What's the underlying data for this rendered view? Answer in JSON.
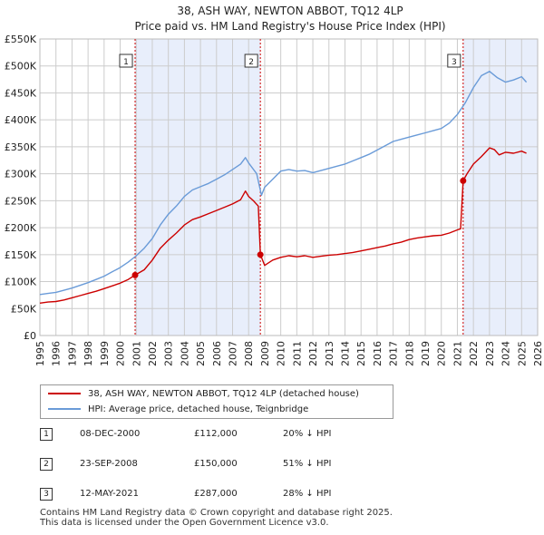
{
  "chart_data": {
    "type": "line",
    "title": "38, ASH WAY, NEWTON ABBOT, TQ12 4LP",
    "subtitle": "Price paid vs. HM Land Registry's House Price Index (HPI)",
    "xlim": [
      1995,
      2026
    ],
    "ylim": [
      0,
      550000
    ],
    "x_ticks": [
      "1995",
      "1996",
      "1997",
      "1998",
      "1999",
      "2000",
      "2001",
      "2002",
      "2003",
      "2004",
      "2005",
      "2006",
      "2007",
      "2008",
      "2009",
      "2010",
      "2011",
      "2012",
      "2013",
      "2014",
      "2015",
      "2016",
      "2017",
      "2018",
      "2019",
      "2020",
      "2021",
      "2022",
      "2023",
      "2024",
      "2025",
      "2026"
    ],
    "y_ticks": [
      {
        "value": 0,
        "label": "£0"
      },
      {
        "value": 50000,
        "label": "£50K"
      },
      {
        "value": 100000,
        "label": "£100K"
      },
      {
        "value": 150000,
        "label": "£150K"
      },
      {
        "value": 200000,
        "label": "£200K"
      },
      {
        "value": 250000,
        "label": "£250K"
      },
      {
        "value": 300000,
        "label": "£300K"
      },
      {
        "value": 350000,
        "label": "£350K"
      },
      {
        "value": 400000,
        "label": "£400K"
      },
      {
        "value": 450000,
        "label": "£450K"
      },
      {
        "value": 500000,
        "label": "£500K"
      },
      {
        "value": 550000,
        "label": "£550K"
      }
    ],
    "series": [
      {
        "name": "38, ASH WAY, NEWTON ABBOT, TQ12 4LP (detached house)",
        "color": "#cc0000",
        "x": [
          1995.0,
          1995.5,
          1996.0,
          1996.5,
          1997.0,
          1997.5,
          1998.0,
          1998.5,
          1999.0,
          1999.5,
          2000.0,
          2000.5,
          2000.93,
          2001.5,
          2002.0,
          2002.5,
          2003.0,
          2003.5,
          2004.0,
          2004.5,
          2005.0,
          2005.5,
          2006.0,
          2006.5,
          2007.0,
          2007.5,
          2007.8,
          2008.0,
          2008.3,
          2008.6,
          2008.73,
          2009.0,
          2009.5,
          2010.0,
          2010.5,
          2011.0,
          2011.5,
          2012.0,
          2012.5,
          2013.0,
          2013.5,
          2014.0,
          2014.5,
          2015.0,
          2015.5,
          2016.0,
          2016.5,
          2017.0,
          2017.5,
          2018.0,
          2018.5,
          2019.0,
          2019.5,
          2020.0,
          2020.5,
          2021.0,
          2021.2,
          2021.36,
          2021.6,
          2022.0,
          2022.5,
          2023.0,
          2023.3,
          2023.6,
          2024.0,
          2024.5,
          2025.0,
          2025.3
        ],
        "y": [
          60000,
          62000,
          63000,
          66000,
          70000,
          74000,
          78000,
          82000,
          87000,
          92000,
          97000,
          104000,
          112000,
          122000,
          140000,
          162000,
          177000,
          190000,
          205000,
          215000,
          220000,
          226000,
          232000,
          238000,
          244000,
          252000,
          268000,
          258000,
          250000,
          240000,
          150000,
          130000,
          140000,
          145000,
          148000,
          146000,
          148000,
          145000,
          147000,
          149000,
          150000,
          152000,
          154000,
          157000,
          160000,
          163000,
          166000,
          170000,
          173000,
          178000,
          181000,
          183000,
          185000,
          186000,
          190000,
          196000,
          198000,
          287000,
          300000,
          318000,
          332000,
          348000,
          345000,
          335000,
          340000,
          338000,
          342000,
          338000
        ]
      },
      {
        "name": "HPI: Average price, detached house, Teignbridge",
        "color": "#6a9bd8",
        "x": [
          1995.0,
          1995.5,
          1996.0,
          1996.5,
          1997.0,
          1997.5,
          1998.0,
          1998.5,
          1999.0,
          1999.5,
          2000.0,
          2000.5,
          2001.0,
          2001.5,
          2002.0,
          2002.5,
          2003.0,
          2003.5,
          2004.0,
          2004.5,
          2005.0,
          2005.5,
          2006.0,
          2006.5,
          2007.0,
          2007.5,
          2007.8,
          2008.0,
          2008.5,
          2008.8,
          2009.0,
          2009.5,
          2010.0,
          2010.5,
          2011.0,
          2011.5,
          2012.0,
          2012.5,
          2013.0,
          2013.5,
          2014.0,
          2014.5,
          2015.0,
          2015.5,
          2016.0,
          2016.5,
          2017.0,
          2017.5,
          2018.0,
          2018.5,
          2019.0,
          2019.5,
          2020.0,
          2020.5,
          2021.0,
          2021.5,
          2022.0,
          2022.5,
          2023.0,
          2023.5,
          2024.0,
          2024.5,
          2025.0,
          2025.3
        ],
        "y": [
          76000,
          78000,
          80000,
          84000,
          88000,
          93000,
          98000,
          104000,
          110000,
          118000,
          126000,
          136000,
          148000,
          162000,
          180000,
          205000,
          225000,
          240000,
          258000,
          270000,
          276000,
          282000,
          290000,
          298000,
          308000,
          318000,
          330000,
          320000,
          300000,
          260000,
          275000,
          290000,
          305000,
          308000,
          305000,
          306000,
          302000,
          306000,
          310000,
          314000,
          318000,
          324000,
          330000,
          336000,
          344000,
          352000,
          360000,
          364000,
          368000,
          372000,
          376000,
          380000,
          384000,
          394000,
          410000,
          432000,
          460000,
          482000,
          490000,
          478000,
          470000,
          474000,
          480000,
          470000
        ]
      }
    ],
    "sales": [
      {
        "label": "1",
        "date": "08-DEC-2000",
        "x": 2000.93,
        "price": 112000,
        "price_label": "£112,000",
        "hpi": "20% ↓ HPI"
      },
      {
        "label": "2",
        "date": "23-SEP-2008",
        "x": 2008.73,
        "price": 150000,
        "price_label": "£150,000",
        "hpi": "51% ↓ HPI"
      },
      {
        "label": "3",
        "date": "12-MAY-2021",
        "x": 2021.36,
        "price": 287000,
        "price_label": "£287,000",
        "hpi": "28% ↓ HPI"
      }
    ],
    "colors": {
      "shade": "#e8eefb",
      "grid": "#cccccc"
    }
  },
  "footer": {
    "line1": "Contains HM Land Registry data © Crown copyright and database right 2025.",
    "line2": "This data is licensed under the Open Government Licence v3.0."
  }
}
